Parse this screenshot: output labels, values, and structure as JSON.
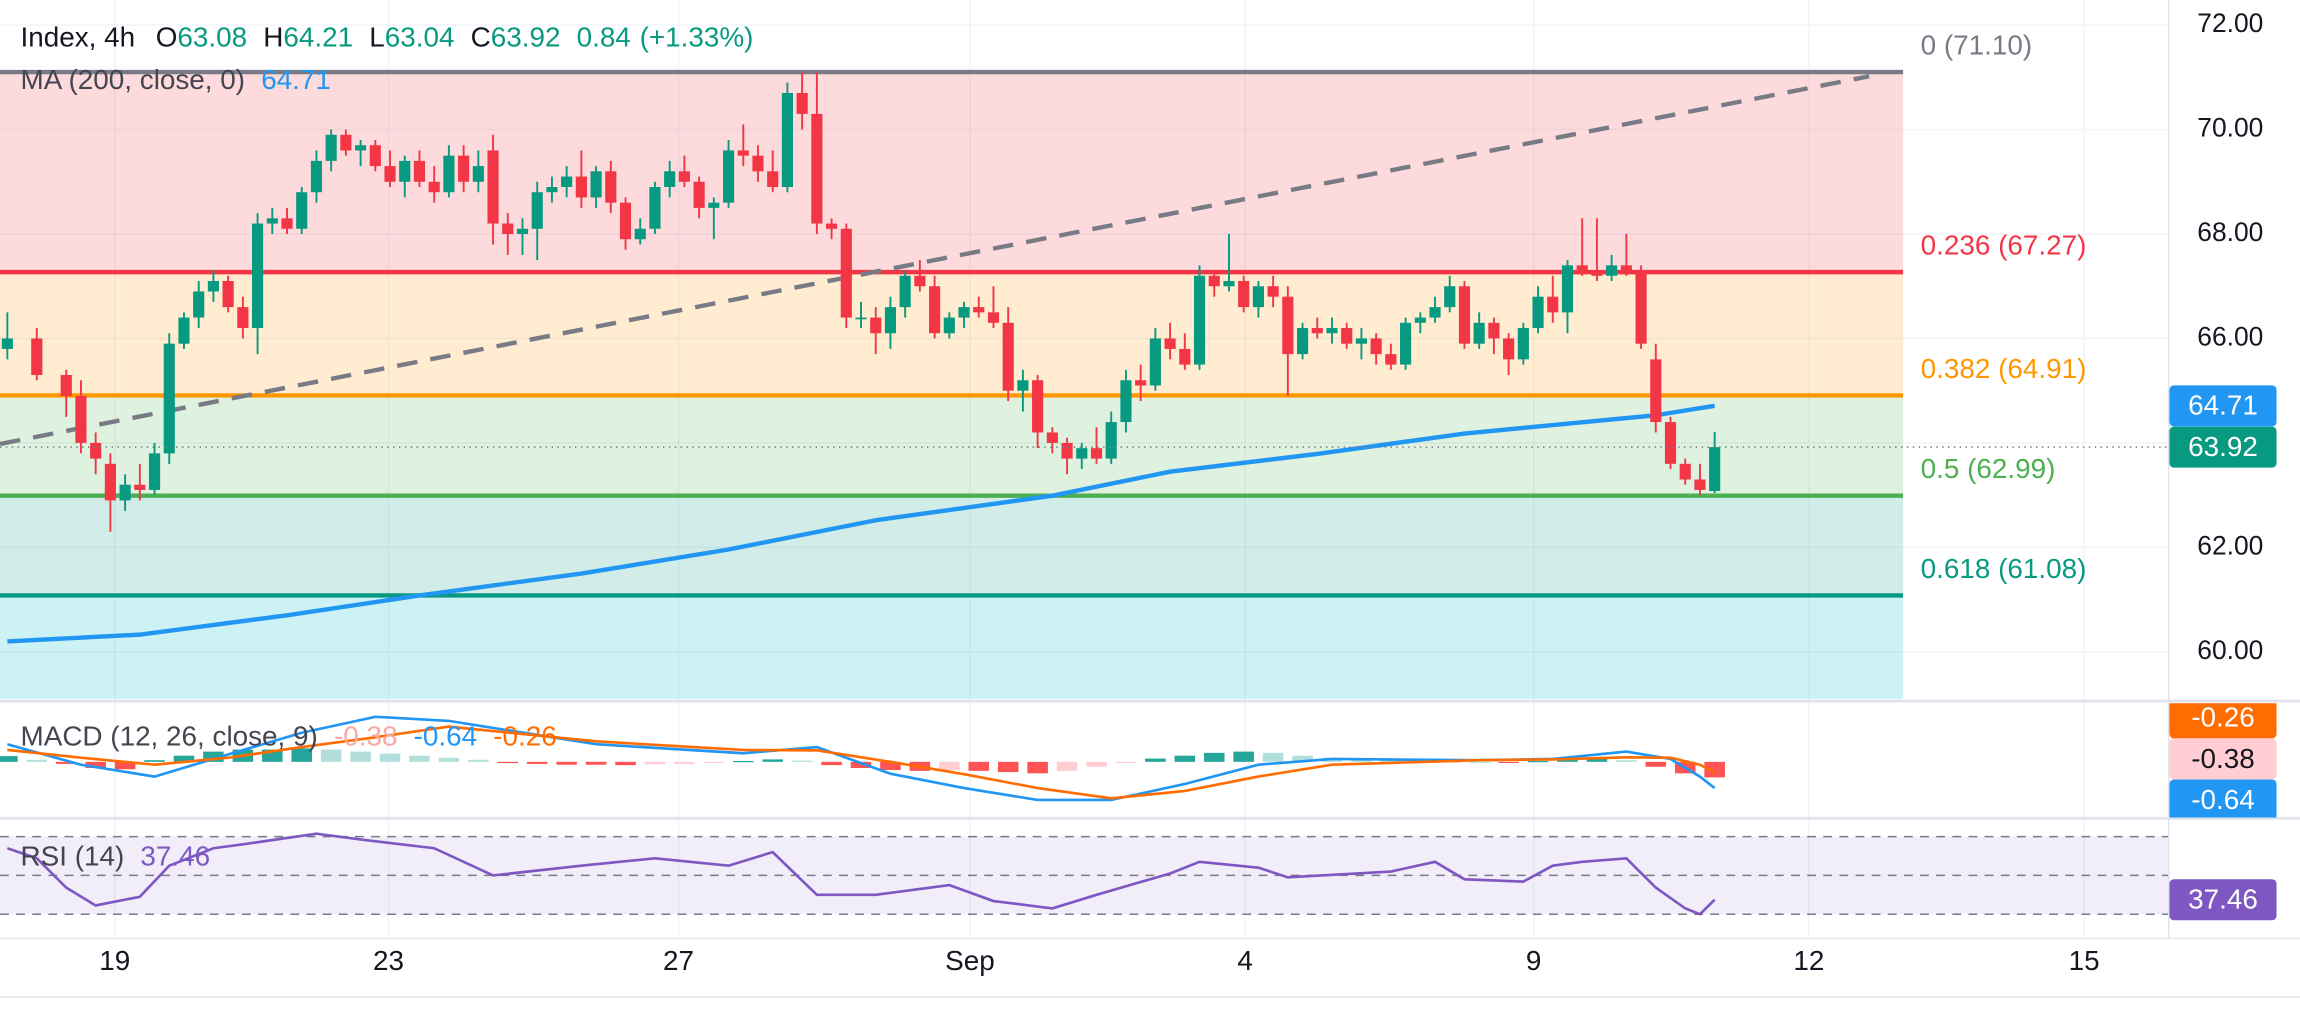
{
  "chart_data": {
    "type": "candlestick",
    "legend": {
      "symbol": "Index, 4h",
      "ohlc": [
        {
          "key": "O",
          "value": 63.08
        },
        {
          "key": "H",
          "value": 64.21
        },
        {
          "key": "L",
          "value": 63.04
        },
        {
          "key": "C",
          "value": 63.92
        }
      ],
      "change": 0.84,
      "change_pct": {
        "value": 1.33,
        "label": "(+1.33%)"
      }
    },
    "x": [
      0,
      2,
      4,
      5,
      6,
      7,
      8,
      9,
      10,
      11,
      12,
      13,
      14,
      15,
      16,
      17,
      18,
      19,
      20,
      21,
      22,
      23,
      24,
      25,
      26,
      27,
      28,
      29,
      30,
      31,
      32,
      33,
      34,
      35,
      36,
      37,
      38,
      39,
      40,
      41,
      42,
      43,
      44,
      45,
      46,
      47,
      48,
      49,
      50,
      51,
      52,
      53,
      54,
      55,
      56,
      57,
      58,
      59,
      60,
      61,
      62,
      63,
      64,
      65,
      66,
      67,
      68,
      69,
      70,
      71,
      72,
      73,
      74,
      75,
      76,
      77,
      78,
      79,
      80,
      81,
      82,
      83,
      84,
      85,
      86,
      87,
      88,
      89,
      90,
      91,
      92,
      93,
      94,
      95,
      96,
      97,
      98,
      99,
      100,
      101,
      102,
      103,
      104,
      105,
      106,
      107,
      108,
      109,
      110,
      111,
      112,
      113,
      114,
      115,
      116
    ],
    "open": [
      65.8,
      66.0,
      65.3,
      64.9,
      64.0,
      63.6,
      62.9,
      63.2,
      63.1,
      63.8,
      65.9,
      66.4,
      66.9,
      67.1,
      66.6,
      66.2,
      68.2,
      68.3,
      68.1,
      68.8,
      69.4,
      69.9,
      69.6,
      69.7,
      69.3,
      69.0,
      69.4,
      69.0,
      68.8,
      69.5,
      69.0,
      69.6,
      68.2,
      68.0,
      68.1,
      68.8,
      68.9,
      69.1,
      68.7,
      69.2,
      68.6,
      67.9,
      68.1,
      68.9,
      69.2,
      69.0,
      68.5,
      68.6,
      69.6,
      69.5,
      69.2,
      68.9,
      70.7,
      70.3,
      68.2,
      68.1,
      66.4,
      66.4,
      66.1,
      66.6,
      67.2,
      67.0,
      66.1,
      66.4,
      66.6,
      66.5,
      66.3,
      65.0,
      65.2,
      64.2,
      64.0,
      63.7,
      63.9,
      63.7,
      64.4,
      65.2,
      65.1,
      66.0,
      65.8,
      65.5,
      67.2,
      67.0,
      67.1,
      66.6,
      67.0,
      66.8,
      65.7,
      66.2,
      66.1,
      66.2,
      65.9,
      66.0,
      65.7,
      65.5,
      66.3,
      66.4,
      66.6,
      67.0,
      65.9,
      66.3,
      66.0,
      65.6,
      66.2,
      66.8,
      66.5,
      67.4,
      67.3,
      67.2,
      67.4,
      67.3,
      65.6,
      64.4,
      63.6,
      63.3,
      63.08
    ],
    "high": [
      66.5,
      66.2,
      65.4,
      65.2,
      64.2,
      63.8,
      63.4,
      63.6,
      64.0,
      66.1,
      66.5,
      67.1,
      67.3,
      67.2,
      66.8,
      68.4,
      68.5,
      68.5,
      68.9,
      69.6,
      70.0,
      70.0,
      69.8,
      69.8,
      69.6,
      69.5,
      69.6,
      69.3,
      69.7,
      69.7,
      69.6,
      69.9,
      68.4,
      68.3,
      69.0,
      69.1,
      69.3,
      69.6,
      69.3,
      69.4,
      68.7,
      68.3,
      69.0,
      69.4,
      69.5,
      69.1,
      68.7,
      69.8,
      70.1,
      69.7,
      69.6,
      70.9,
      71.1,
      71.1,
      68.3,
      68.2,
      66.7,
      66.6,
      66.8,
      67.3,
      67.5,
      67.2,
      66.5,
      66.7,
      66.8,
      67.0,
      66.6,
      65.4,
      65.3,
      64.3,
      64.1,
      64.0,
      64.3,
      64.6,
      65.4,
      65.5,
      66.2,
      66.3,
      66.1,
      67.4,
      67.3,
      68.0,
      67.2,
      67.1,
      67.2,
      67.0,
      66.3,
      66.4,
      66.4,
      66.3,
      66.2,
      66.1,
      65.9,
      66.4,
      66.5,
      66.8,
      67.2,
      67.1,
      66.5,
      66.4,
      66.1,
      66.3,
      67.0,
      67.2,
      67.5,
      68.3,
      68.3,
      67.6,
      68.0,
      67.4,
      65.9,
      64.5,
      63.7,
      63.6,
      64.21
    ],
    "low": [
      65.6,
      65.2,
      64.5,
      63.8,
      63.4,
      62.3,
      62.7,
      62.9,
      63.0,
      63.6,
      65.8,
      66.2,
      66.7,
      66.5,
      66.0,
      65.7,
      68.0,
      68.0,
      68.0,
      68.6,
      69.2,
      69.5,
      69.3,
      69.2,
      68.9,
      68.7,
      68.9,
      68.6,
      68.7,
      68.8,
      68.8,
      67.8,
      67.6,
      67.6,
      67.5,
      68.6,
      68.7,
      68.5,
      68.5,
      68.4,
      67.7,
      67.8,
      68.0,
      68.7,
      68.9,
      68.3,
      67.9,
      68.5,
      69.3,
      69.0,
      68.8,
      68.8,
      70.0,
      68.0,
      67.9,
      66.2,
      66.2,
      65.7,
      65.8,
      66.4,
      66.9,
      66.0,
      66.0,
      66.2,
      66.4,
      66.2,
      64.8,
      64.6,
      63.9,
      63.8,
      63.4,
      63.5,
      63.6,
      63.6,
      64.2,
      64.8,
      65.0,
      65.6,
      65.4,
      65.4,
      66.8,
      66.9,
      66.5,
      66.4,
      66.6,
      64.9,
      65.6,
      66.0,
      65.9,
      65.8,
      65.6,
      65.5,
      65.4,
      65.4,
      66.1,
      66.3,
      66.5,
      65.8,
      65.8,
      65.7,
      65.3,
      65.5,
      66.1,
      66.3,
      66.1,
      67.2,
      67.1,
      67.1,
      67.2,
      65.8,
      64.2,
      63.5,
      63.2,
      63.0,
      63.04
    ],
    "close": [
      66.0,
      65.3,
      64.9,
      64.0,
      63.7,
      62.9,
      63.2,
      63.1,
      63.8,
      65.9,
      66.4,
      66.9,
      67.1,
      66.6,
      66.2,
      68.2,
      68.3,
      68.1,
      68.8,
      69.4,
      69.9,
      69.6,
      69.7,
      69.3,
      69.0,
      69.4,
      69.0,
      68.8,
      69.5,
      69.0,
      69.3,
      68.2,
      68.0,
      68.1,
      68.8,
      68.9,
      69.1,
      68.7,
      69.2,
      68.6,
      67.9,
      68.1,
      68.9,
      69.2,
      69.0,
      68.5,
      68.6,
      69.6,
      69.5,
      69.2,
      68.9,
      70.7,
      70.3,
      68.2,
      68.1,
      66.4,
      66.4,
      66.1,
      66.6,
      67.2,
      67.0,
      66.1,
      66.4,
      66.6,
      66.5,
      66.3,
      65.0,
      65.2,
      64.2,
      64.0,
      63.7,
      63.9,
      63.7,
      64.4,
      65.2,
      65.1,
      66.0,
      65.8,
      65.5,
      67.2,
      67.0,
      67.1,
      66.6,
      67.0,
      66.8,
      65.7,
      66.2,
      66.1,
      66.2,
      65.9,
      66.0,
      65.7,
      65.5,
      66.3,
      66.4,
      66.6,
      67.0,
      65.9,
      66.3,
      66.0,
      65.6,
      66.2,
      66.8,
      66.5,
      67.4,
      67.3,
      67.2,
      67.4,
      67.3,
      65.9,
      64.4,
      63.6,
      63.3,
      63.1,
      63.92
    ],
    "up_color": "#089981",
    "down_color": "#f23645",
    "xlim": [
      -0.5,
      146.8
    ],
    "xticks": [
      {
        "value": 7.3,
        "label": "19"
      },
      {
        "value": 25.9,
        "label": "23"
      },
      {
        "value": 45.6,
        "label": "27"
      },
      {
        "value": 65.4,
        "label": "Sep"
      },
      {
        "value": 84.1,
        "label": "4"
      },
      {
        "value": 103.7,
        "label": "9"
      },
      {
        "value": 122.4,
        "label": "12"
      },
      {
        "value": 141.1,
        "label": "15"
      }
    ],
    "ylim": [
      59.1,
      72.48
    ],
    "yticks": [
      {
        "value": 60,
        "label": "60.00"
      },
      {
        "value": 62,
        "label": "62.00"
      },
      {
        "value": 64,
        "label": "64.00"
      },
      {
        "value": 66,
        "label": "66.00"
      },
      {
        "value": 68,
        "label": "68.00"
      },
      {
        "value": 70,
        "label": "70.00"
      },
      {
        "value": 72,
        "label": "72.00"
      }
    ],
    "grid": true,
    "ma": {
      "label": "MA (200, close, 0)",
      "value": 64.71,
      "color": "#2196f3",
      "x": [
        0,
        9,
        19,
        28,
        39,
        49,
        59,
        71,
        79,
        89,
        99,
        112,
        116
      ],
      "values": [
        60.2,
        60.33,
        60.7,
        61.08,
        61.5,
        61.96,
        62.52,
        62.99,
        63.45,
        63.79,
        64.18,
        64.53,
        64.71
      ]
    },
    "fib": {
      "end_x": 128.8,
      "below_color": "#00bcd4",
      "levels": [
        {
          "label": "0 (71.10)",
          "value": 71.1,
          "color": "#787b86"
        },
        {
          "label": "0.236 (67.27)",
          "value": 67.27,
          "color": "#f23645"
        },
        {
          "label": "0.382 (64.91)",
          "value": 64.91,
          "color": "#ff9800"
        },
        {
          "label": "0.5 (62.99)",
          "value": 62.99,
          "color": "#4caf50"
        },
        {
          "label": "0.618 (61.08)",
          "value": 61.08,
          "color": "#089981"
        }
      ]
    },
    "trendline": {
      "x": [
        -0.5,
        126.5
      ],
      "values": [
        63.98,
        71.02
      ],
      "color": "#787b86"
    },
    "macd": {
      "label": "MACD (12, 26, close, 9)",
      "ylim": [
        -1.36,
        1.43
      ],
      "hist": {
        "value": -0.38,
        "color": "#f7a9a7",
        "colors": [
          "#26a69a",
          "#b2dfdb",
          "#ffcdd2",
          "#ff5252"
        ],
        "x": [
          0,
          2,
          4,
          6,
          8,
          10,
          12,
          14,
          16,
          18,
          20,
          22,
          24,
          26,
          28,
          30,
          32,
          34,
          36,
          38,
          40,
          42,
          44,
          46,
          48,
          50,
          52,
          54,
          56,
          58,
          60,
          62,
          64,
          66,
          68,
          70,
          72,
          74,
          76,
          78,
          80,
          82,
          84,
          86,
          88,
          90,
          92,
          94,
          96,
          98,
          100,
          102,
          104,
          106,
          108,
          110,
          112,
          114,
          116
        ],
        "values": [
          0.14,
          0.05,
          -0.05,
          -0.15,
          -0.18,
          0.04,
          0.15,
          0.25,
          0.3,
          0.3,
          0.33,
          0.3,
          0.25,
          0.2,
          0.15,
          0.1,
          0.05,
          -0.03,
          -0.05,
          -0.07,
          -0.07,
          -0.08,
          -0.06,
          -0.05,
          -0.03,
          0.02,
          0.06,
          0.03,
          -0.08,
          -0.15,
          -0.2,
          -0.22,
          -0.2,
          -0.22,
          -0.25,
          -0.28,
          -0.22,
          -0.12,
          -0.03,
          0.08,
          0.15,
          0.22,
          0.25,
          0.22,
          0.15,
          0.1,
          0.06,
          0.04,
          0.02,
          0.02,
          0.0,
          -0.01,
          0.02,
          0.05,
          0.08,
          0.04,
          -0.12,
          -0.28,
          -0.38
        ]
      },
      "macd": {
        "value": -0.64,
        "color": "#2196f3",
        "x": [
          0,
          5,
          10,
          15,
          20,
          25,
          30,
          40,
          50,
          55,
          60,
          65,
          70,
          75,
          80,
          85,
          90,
          100,
          105,
          110,
          113,
          115,
          116
        ],
        "values": [
          0.43,
          -0.07,
          -0.36,
          0.18,
          0.71,
          1.1,
          1.0,
          0.43,
          0.21,
          0.36,
          -0.29,
          -0.64,
          -0.93,
          -0.93,
          -0.54,
          -0.07,
          0.07,
          0.04,
          0.07,
          0.25,
          0.07,
          -0.36,
          -0.64
        ]
      },
      "signal": {
        "value": -0.26,
        "color": "#ff6d00",
        "x": [
          0,
          5,
          10,
          15,
          20,
          25,
          30,
          40,
          50,
          55,
          60,
          65,
          70,
          75,
          80,
          85,
          90,
          100,
          105,
          110,
          113,
          115,
          116
        ],
        "values": [
          0.29,
          0.1,
          -0.07,
          0.1,
          0.36,
          0.6,
          0.86,
          0.5,
          0.29,
          0.28,
          0.0,
          -0.3,
          -0.64,
          -0.89,
          -0.71,
          -0.36,
          -0.07,
          0.04,
          0.06,
          0.11,
          0.1,
          -0.07,
          -0.26
        ]
      }
    },
    "rsi": {
      "label": "RSI (14)",
      "value": 37.46,
      "color": "#7e57c2",
      "ylim": [
        17.9,
        78.3
      ],
      "bands": [
        70,
        50,
        30
      ],
      "x": [
        0,
        2,
        4,
        6,
        9,
        11,
        14,
        16,
        21,
        24,
        29,
        33,
        39,
        44,
        49,
        52,
        55,
        59,
        64,
        67,
        71,
        74,
        79,
        81,
        85,
        87,
        94,
        97,
        99,
        103,
        105,
        107,
        110,
        112,
        114,
        115,
        116
      ],
      "values": [
        64,
        58.8,
        43.7,
        34.5,
        39,
        55,
        64,
        66,
        71.5,
        68.5,
        64,
        50,
        55,
        58.8,
        55,
        62,
        40,
        40,
        45,
        36.8,
        33,
        40,
        51,
        57,
        54,
        49,
        52,
        57,
        48,
        46.8,
        55,
        57,
        58.8,
        43.7,
        33,
        30,
        37.46
      ]
    }
  }
}
